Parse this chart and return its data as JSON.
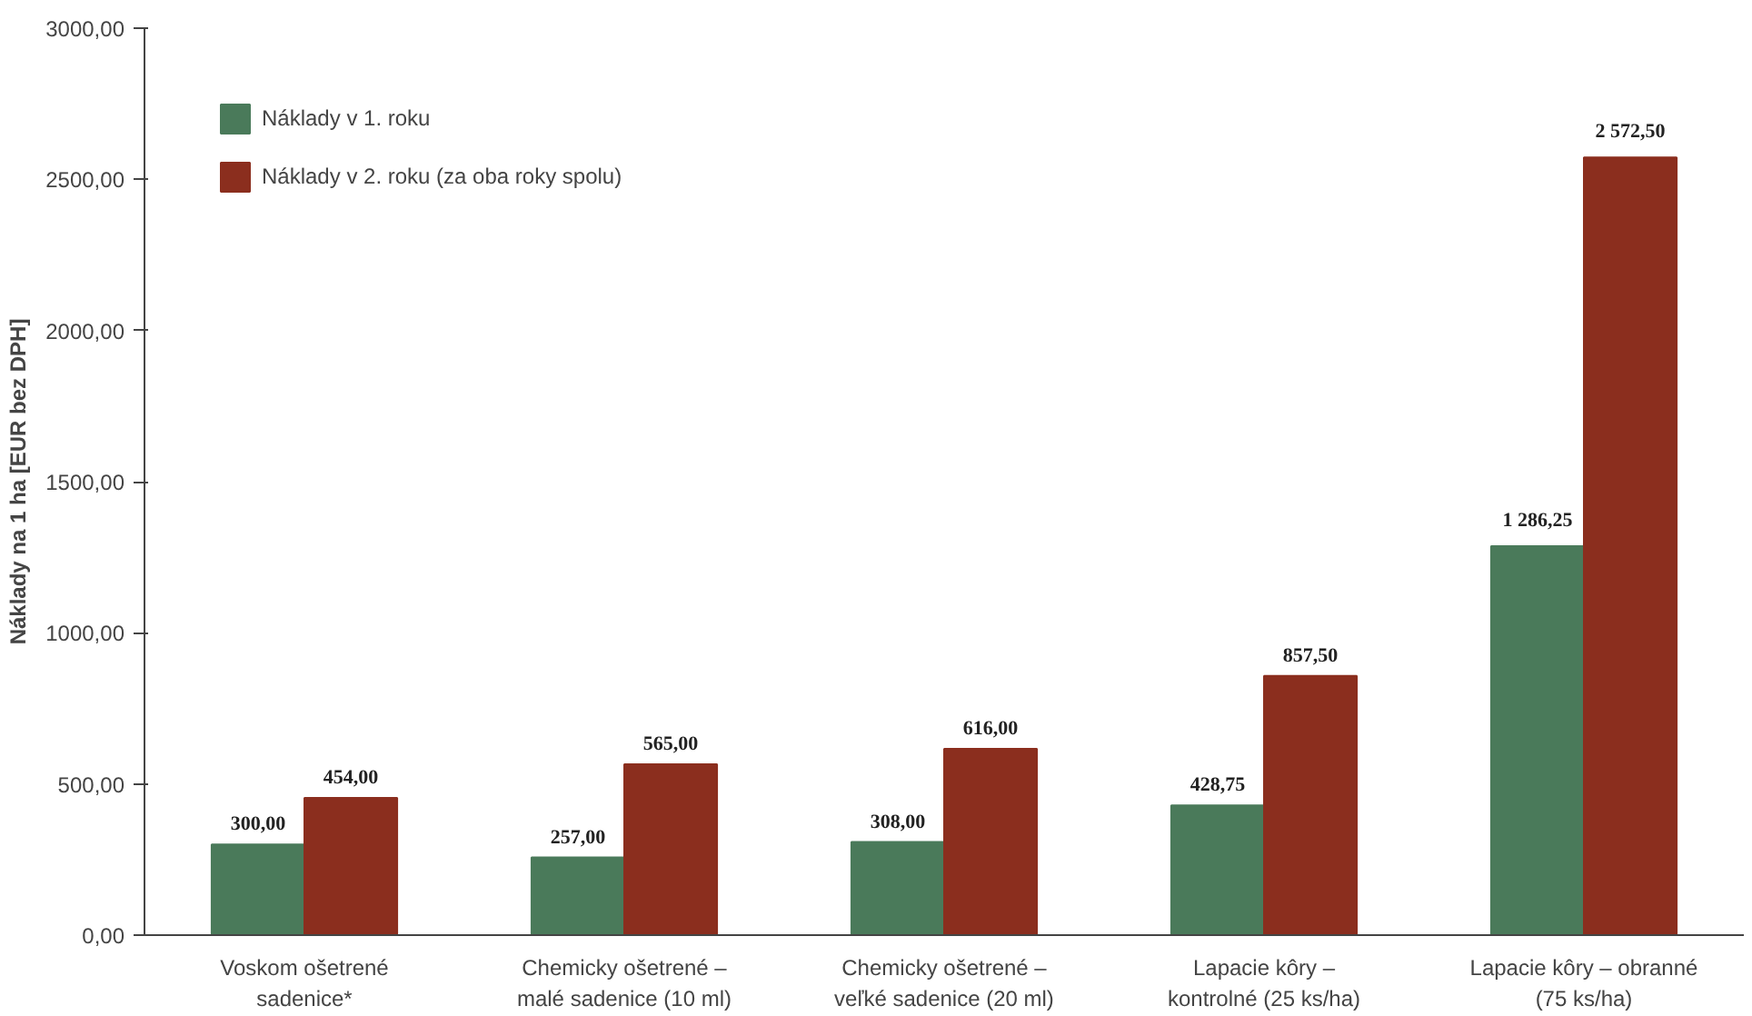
{
  "chart_data": {
    "type": "bar",
    "ylabel": "Náklady na 1 ha [EUR bez DPH]",
    "categories": [
      "Voskom ošetrené\nsadenice*",
      "Chemicky ošetrené –\nmalé sadenice (10 ml)",
      "Chemicky ošetrené –\nveľké sadenice (20 ml)",
      "Lapacie kôry –\nkontrolné (25 ks/ha)",
      "Lapacie kôry – obranné\n(75 ks/ha)"
    ],
    "series": [
      {
        "name": "Náklady v 1. roku",
        "color": "#4a7a5a",
        "values": [
          300.0,
          257.0,
          308.0,
          428.75,
          1286.25
        ],
        "value_labels": [
          "300,00",
          "257,00",
          "308,00",
          "428,75",
          "1 286,25"
        ]
      },
      {
        "name": "Náklady v 2. roku (za oba roky spolu)",
        "color": "#8b2e1e",
        "values": [
          454.0,
          565.0,
          616.0,
          857.5,
          2572.5
        ],
        "value_labels": [
          "454,00",
          "565,00",
          "616,00",
          "857,50",
          "2 572,50"
        ]
      }
    ],
    "ylim": [
      0,
      3000
    ],
    "yticks": [
      {
        "value": 0,
        "label": "0,00"
      },
      {
        "value": 500,
        "label": "500,00"
      },
      {
        "value": 1000,
        "label": "1000,00"
      },
      {
        "value": 1500,
        "label": "1500,00"
      },
      {
        "value": 2000,
        "label": "2000,00"
      },
      {
        "value": 2500,
        "label": "2500,00"
      },
      {
        "value": 3000,
        "label": "3000,00"
      }
    ],
    "grid": false,
    "legend": "top left"
  }
}
